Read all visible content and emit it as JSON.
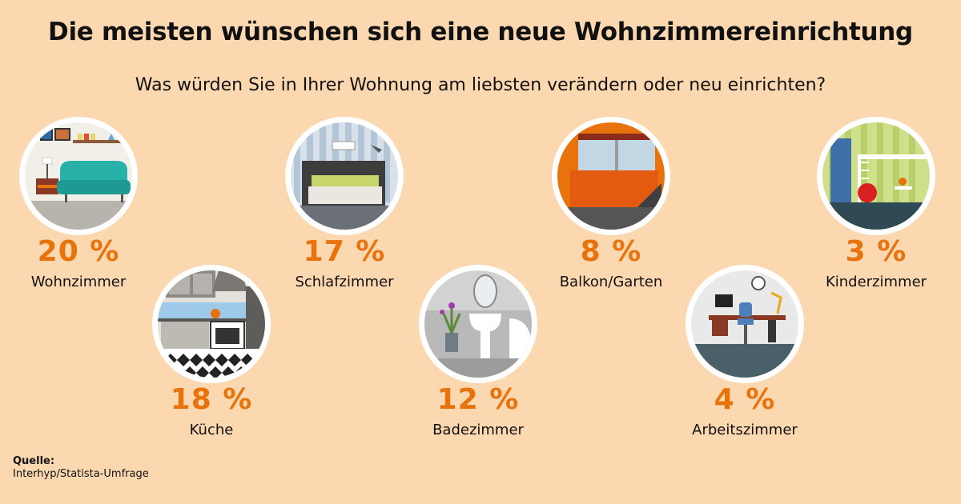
{
  "title": "Die meisten wünschen sich eine neue Wohnzimmereinrichtung",
  "subtitle": "Was würden Sie in Ihrer Wohnung am liebsten verändern oder neu einrichten?",
  "chart_data": {
    "type": "pictogram",
    "unit": "%",
    "categories": [
      "Wohnzimmer",
      "Küche",
      "Schlafzimmer",
      "Badezimmer",
      "Balkon/Garten",
      "Arbeitszimmer",
      "Kinderzimmer"
    ],
    "values": [
      20,
      18,
      17,
      12,
      8,
      4,
      3
    ],
    "value_labels": [
      "20 %",
      "18 %",
      "17 %",
      "12 %",
      "8 %",
      "4 %",
      "3 %"
    ],
    "icons": [
      "living-room-icon",
      "kitchen-icon",
      "bedroom-icon",
      "bathroom-icon",
      "balcony-icon",
      "office-icon",
      "kids-room-icon"
    ],
    "value_color": "#e8730c"
  },
  "source": {
    "heading": "Quelle:",
    "text": "Interhyp/Statista-Umfrage"
  },
  "colors": {
    "background": "#fcd8b0",
    "accent": "#e8730c"
  }
}
